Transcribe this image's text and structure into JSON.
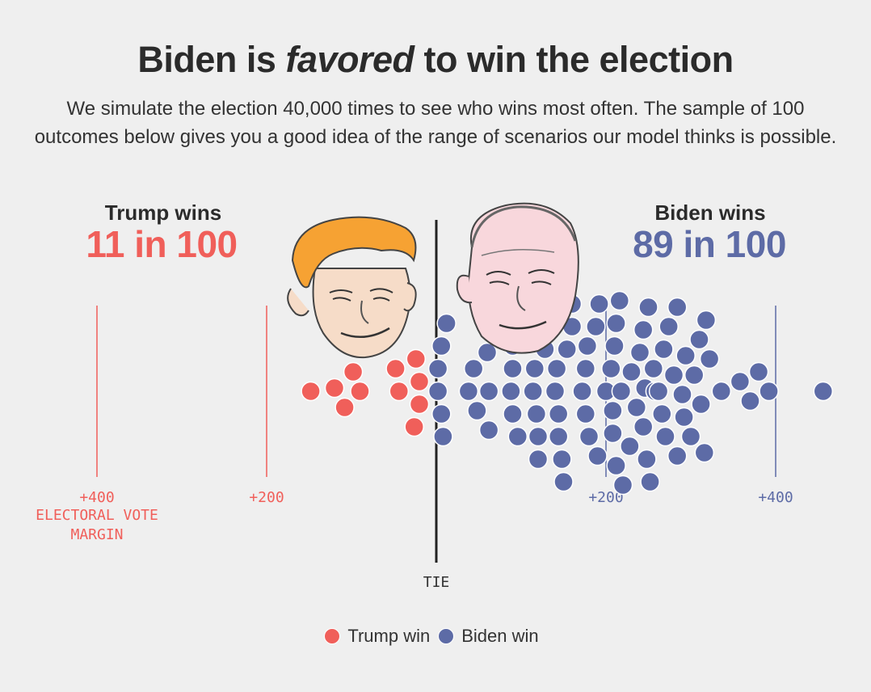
{
  "headline": {
    "part1": "Biden is ",
    "emphasis": "favored",
    "part2": " to win the election"
  },
  "dek": "We simulate the election 40,000 times to see who wins most often. The sample of 100 outcomes below gives you a good idea of the range of scenarios our model thinks is possible.",
  "trump": {
    "label": "Trump wins",
    "count": "11 in 100"
  },
  "biden": {
    "label": "Biden wins",
    "count": "89 in 100"
  },
  "legend": {
    "trump": "Trump win",
    "biden": "Biden win"
  },
  "colors": {
    "trump": "#f05f5a",
    "biden": "#5d6ba6",
    "tie_line": "#222222"
  },
  "chart_data": {
    "type": "scatter",
    "title": "Biden is favored to win the election",
    "x_axis": {
      "range": [
        -400,
        470
      ],
      "ticks": [
        {
          "value": -400,
          "label": "+400",
          "side": "trump"
        },
        {
          "value": -200,
          "label": "+200",
          "side": "trump"
        },
        {
          "value": 0,
          "label": "TIE",
          "side": "tie"
        },
        {
          "value": 200,
          "label": "+200",
          "side": "biden"
        },
        {
          "value": 400,
          "label": "+400",
          "side": "biden"
        }
      ],
      "title": [
        "ELECTORAL VOTE",
        "MARGIN"
      ]
    },
    "series": [
      {
        "name": "Trump win",
        "margins": [
          -148,
          -108,
          -120,
          -90,
          -98,
          -48,
          -20,
          -44,
          -20,
          -24,
          -26
        ]
      },
      {
        "name": "Biden win",
        "margins": [
          12,
          38,
          44,
          2,
          48,
          62,
          60,
          62,
          88,
          90,
          6,
          90,
          90,
          116,
          114,
          118,
          108,
          96,
          120,
          128,
          120,
          132,
          140,
          148,
          150,
          142,
          134,
          144,
          176,
          190,
          172,
          178,
          160,
          154,
          160,
          180,
          188,
          212,
          208,
          200,
          206,
          192,
          216,
          208,
          212,
          236,
          240,
          230,
          246,
          248,
          252,
          258,
          262,
          266,
          268,
          274,
          270,
          284,
          290,
          284,
          280,
          294,
          292,
          304,
          310,
          312,
          316,
          322,
          318,
          336,
          358,
          370,
          392,
          6,
          8,
          2,
          144,
          176,
          244,
          250,
          256,
          218,
          228,
          220,
          210,
          244,
          300,
          380,
          456
        ]
      }
    ],
    "legend_position": "bottom-center",
    "grid": false
  }
}
